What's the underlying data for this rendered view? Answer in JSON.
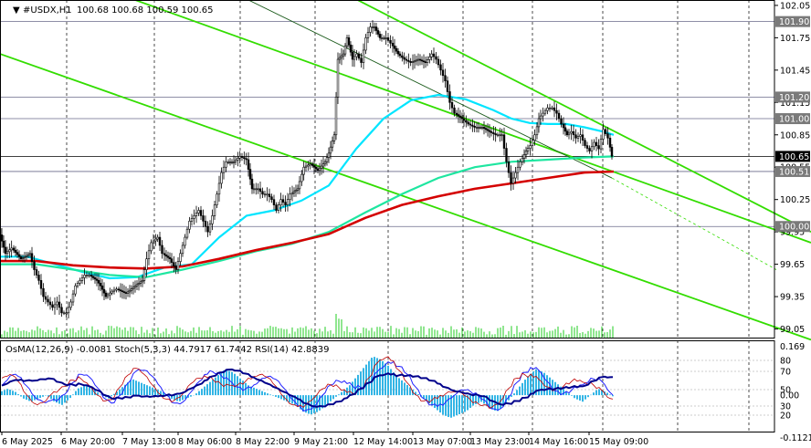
{
  "window": {
    "title": "#USDX,H1",
    "ohlc": "100.68 100.68 100.59 100.65"
  },
  "indicator_caption": "OsMA(12,26,9) -0.0081  Stoch(5,3,3) 44.7917 61.7442  RSI(14) 42.8839",
  "colors": {
    "fast_ma": "#00e5ff",
    "mid_ma": "#1ee6a0",
    "slow_ma": "#d40000",
    "channel": "#33dd00",
    "price_line_bg": "#000000",
    "volume": "#22cc22",
    "osma": "#33b5e5",
    "stoch_main": "#00008b",
    "rsi": "#2222ff"
  },
  "chart_data": [
    {
      "type": "candlestick",
      "title": "#USDX,H1",
      "ylim": [
        98.97,
        102.1
      ],
      "y_ticks": [
        "102.05",
        "101.75",
        "101.45",
        "101.15",
        "100.85",
        "100.55",
        "100.25",
        "99.95",
        "99.65",
        "99.35",
        "99.05"
      ],
      "price_levels": [
        {
          "label": "101.90",
          "value": 101.9,
          "style": "gray"
        },
        {
          "label": "101.20",
          "value": 101.2,
          "style": "gray"
        },
        {
          "label": "101.00",
          "value": 101.0,
          "style": "gray"
        },
        {
          "label": "100.65",
          "value": 100.65,
          "style": "current"
        },
        {
          "label": "100.51",
          "value": 100.51,
          "style": "gray"
        },
        {
          "label": "100.00",
          "value": 100.0,
          "style": "gray"
        }
      ],
      "x_labels": [
        "6 May 2025",
        "6 May 20:00",
        "7 May 13:00",
        "8 May 06:00",
        "8 May 22:00",
        "9 May 21:00",
        "12 May 14:00",
        "13 May 07:00",
        "13 May 23:00",
        "14 May 16:00",
        "15 May 09:00"
      ],
      "close_path": [
        [
          0,
          99.98
        ],
        [
          8,
          99.75
        ],
        [
          15,
          99.8
        ],
        [
          25,
          99.7
        ],
        [
          35,
          99.75
        ],
        [
          40,
          99.6
        ],
        [
          45,
          99.5
        ],
        [
          50,
          99.35
        ],
        [
          55,
          99.3
        ],
        [
          60,
          99.25
        ],
        [
          65,
          99.3
        ],
        [
          70,
          99.2
        ],
        [
          75,
          99.2
        ],
        [
          80,
          99.3
        ],
        [
          85,
          99.45
        ],
        [
          90,
          99.5
        ],
        [
          95,
          99.55
        ],
        [
          100,
          99.55
        ],
        [
          108,
          99.5
        ],
        [
          112,
          99.45
        ],
        [
          118,
          99.35
        ],
        [
          125,
          99.4
        ],
        [
          130,
          99.42
        ],
        [
          140,
          99.38
        ],
        [
          150,
          99.45
        ],
        [
          158,
          99.5
        ],
        [
          163,
          99.7
        ],
        [
          168,
          99.85
        ],
        [
          175,
          99.9
        ],
        [
          180,
          99.75
        ],
        [
          188,
          99.7
        ],
        [
          195,
          99.6
        ],
        [
          200,
          99.75
        ],
        [
          205,
          99.9
        ],
        [
          210,
          100.05
        ],
        [
          215,
          100.1
        ],
        [
          220,
          100.15
        ],
        [
          225,
          100.05
        ],
        [
          230,
          99.95
        ],
        [
          235,
          100.1
        ],
        [
          240,
          100.3
        ],
        [
          245,
          100.5
        ],
        [
          250,
          100.6
        ],
        [
          258,
          100.6
        ],
        [
          265,
          100.65
        ],
        [
          272,
          100.62
        ],
        [
          278,
          100.35
        ],
        [
          285,
          100.35
        ],
        [
          290,
          100.3
        ],
        [
          295,
          100.3
        ],
        [
          300,
          100.25
        ],
        [
          305,
          100.15
        ],
        [
          310,
          100.25
        ],
        [
          315,
          100.2
        ],
        [
          320,
          100.3
        ],
        [
          328,
          100.35
        ],
        [
          335,
          100.55
        ],
        [
          342,
          100.58
        ],
        [
          350,
          100.52
        ],
        [
          358,
          100.6
        ],
        [
          362,
          100.68
        ],
        [
          368,
          100.85
        ],
        [
          372,
          101.55
        ],
        [
          378,
          101.6
        ],
        [
          382,
          101.75
        ],
        [
          388,
          101.55
        ],
        [
          393,
          101.6
        ],
        [
          398,
          101.52
        ],
        [
          403,
          101.75
        ],
        [
          408,
          101.85
        ],
        [
          412,
          101.85
        ],
        [
          418,
          101.75
        ],
        [
          425,
          101.75
        ],
        [
          430,
          101.7
        ],
        [
          438,
          101.6
        ],
        [
          445,
          101.55
        ],
        [
          452,
          101.52
        ],
        [
          460,
          101.55
        ],
        [
          468,
          101.52
        ],
        [
          475,
          101.6
        ],
        [
          480,
          101.55
        ],
        [
          485,
          101.45
        ],
        [
          490,
          101.35
        ],
        [
          495,
          101.15
        ],
        [
          500,
          101.05
        ],
        [
          508,
          101.0
        ],
        [
          515,
          100.95
        ],
        [
          522,
          100.92
        ],
        [
          530,
          100.92
        ],
        [
          538,
          100.88
        ],
        [
          545,
          100.85
        ],
        [
          552,
          100.85
        ],
        [
          557,
          100.6
        ],
        [
          562,
          100.4
        ],
        [
          567,
          100.5
        ],
        [
          572,
          100.6
        ],
        [
          578,
          100.7
        ],
        [
          583,
          100.75
        ],
        [
          588,
          100.85
        ],
        [
          592,
          101.0
        ],
        [
          597,
          101.05
        ],
        [
          602,
          101.1
        ],
        [
          607,
          101.1
        ],
        [
          612,
          101.05
        ],
        [
          617,
          100.95
        ],
        [
          623,
          100.85
        ],
        [
          628,
          100.88
        ],
        [
          633,
          100.82
        ],
        [
          638,
          100.85
        ],
        [
          643,
          100.75
        ],
        [
          648,
          100.7
        ],
        [
          653,
          100.78
        ],
        [
          658,
          100.72
        ],
        [
          663,
          100.9
        ],
        [
          668,
          100.82
        ],
        [
          672,
          100.65
        ]
      ],
      "series": [
        {
          "name": "fast_ma",
          "values": [
            [
              0,
              99.72
            ],
            [
              30,
              99.72
            ],
            [
              60,
              99.65
            ],
            [
              90,
              99.58
            ],
            [
              120,
              99.52
            ],
            [
              150,
              99.53
            ],
            [
              180,
              99.62
            ],
            [
              210,
              99.65
            ],
            [
              240,
              99.9
            ],
            [
              270,
              100.1
            ],
            [
              300,
              100.15
            ],
            [
              330,
              100.24
            ],
            [
              360,
              100.38
            ],
            [
              390,
              100.72
            ],
            [
              420,
              101.0
            ],
            [
              450,
              101.17
            ],
            [
              480,
              101.22
            ],
            [
              510,
              101.18
            ],
            [
              540,
              101.08
            ],
            [
              560,
              101.0
            ],
            [
              580,
              100.96
            ],
            [
              600,
              100.95
            ],
            [
              620,
              100.95
            ],
            [
              640,
              100.92
            ],
            [
              660,
              100.88
            ],
            [
              672,
              100.85
            ]
          ]
        },
        {
          "name": "mid_ma",
          "values": [
            [
              0,
              99.65
            ],
            [
              40,
              99.65
            ],
            [
              80,
              99.6
            ],
            [
              120,
              99.55
            ],
            [
              160,
              99.53
            ],
            [
              200,
              99.6
            ],
            [
              240,
              99.68
            ],
            [
              280,
              99.77
            ],
            [
              320,
              99.84
            ],
            [
              360,
              99.95
            ],
            [
              400,
              100.13
            ],
            [
              440,
              100.3
            ],
            [
              480,
              100.45
            ],
            [
              520,
              100.55
            ],
            [
              560,
              100.6
            ],
            [
              600,
              100.62
            ],
            [
              640,
              100.64
            ],
            [
              672,
              100.65
            ]
          ]
        },
        {
          "name": "slow_ma",
          "values": [
            [
              0,
              99.68
            ],
            [
              40,
              99.68
            ],
            [
              80,
              99.64
            ],
            [
              120,
              99.62
            ],
            [
              160,
              99.61
            ],
            [
              200,
              99.63
            ],
            [
              240,
              99.7
            ],
            [
              280,
              99.78
            ],
            [
              320,
              99.85
            ],
            [
              360,
              99.93
            ],
            [
              400,
              100.08
            ],
            [
              440,
              100.2
            ],
            [
              480,
              100.28
            ],
            [
              520,
              100.35
            ],
            [
              560,
              100.4
            ],
            [
              600,
              100.45
            ],
            [
              640,
              100.5
            ],
            [
              672,
              100.51
            ]
          ]
        }
      ],
      "channel_lines": [
        {
          "from": [
            0,
            102.55
          ],
          "to": [
            888,
            99.85
          ],
          "style": "green"
        },
        {
          "from": [
            0,
            101.6
          ],
          "to": [
            888,
            98.95
          ],
          "style": "green"
        },
        {
          "from": [
            380,
            102.15
          ],
          "to": [
            888,
            99.95
          ],
          "style": "green"
        },
        {
          "from": [
            260,
            102.15
          ],
          "to": [
            670,
            100.45
          ],
          "style": "darkgreen"
        },
        {
          "from": [
            670,
            100.45
          ],
          "to": [
            850,
            99.6
          ],
          "style": "dashed"
        }
      ]
    },
    {
      "type": "bar",
      "title": "OsMA(12,26,9) -0.0081  Stoch(5,3,3) 44.7917 61.7442  RSI(14) 42.8839",
      "y_ticks_left": [
        "0.169",
        "0.00",
        "-0.1121"
      ],
      "y_ticks_right": [
        "80",
        "70",
        "50",
        "30",
        "20"
      ],
      "ylim": [
        -0.1121,
        0.169
      ],
      "osma_pattern": [
        0.01,
        0.02,
        0.01,
        -0.01,
        -0.02,
        -0.01,
        0.0,
        -0.02,
        -0.03,
        -0.01,
        0.02,
        0.03,
        0.02,
        0.0,
        -0.01,
        0.01,
        0.03,
        0.05,
        0.04,
        0.03,
        0.02,
        0.01,
        -0.01,
        -0.02,
        -0.01,
        0.0,
        0.02,
        0.04,
        0.06,
        0.08,
        0.07,
        0.05,
        0.03,
        0.02,
        0.01,
        0.0,
        -0.01,
        -0.02,
        -0.03,
        -0.05,
        -0.06,
        -0.05,
        -0.03,
        -0.01,
        0.01,
        0.03,
        0.06,
        0.09,
        0.12,
        0.11,
        0.09,
        0.06,
        0.04,
        0.02,
        0.0,
        -0.02,
        -0.04,
        -0.06,
        -0.07,
        -0.06,
        -0.05,
        -0.03,
        -0.02,
        -0.04,
        -0.05,
        -0.03,
        0.0,
        0.03,
        0.06,
        0.08,
        0.07,
        0.05,
        0.03,
        0.01,
        -0.01,
        -0.02,
        0.0,
        0.02,
        0.01,
        -0.005
      ]
    }
  ]
}
